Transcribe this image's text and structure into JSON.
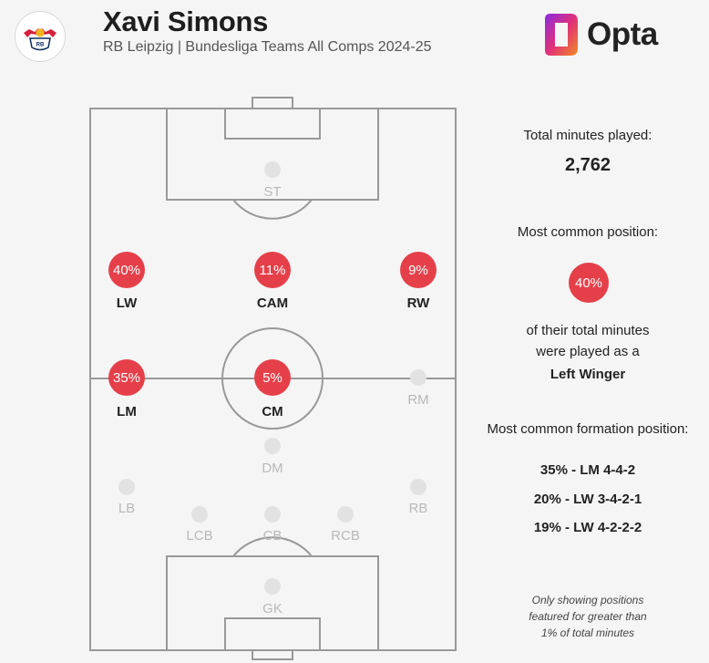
{
  "header": {
    "player_name": "Xavi Simons",
    "subtitle": "RB Leipzig | Bundesliga Teams All Comps 2024-25",
    "club_badge_icon": "rb-leipzig-badge-icon",
    "brand": "Opta"
  },
  "colors": {
    "accent": "#e5404a",
    "inactive_dot": "#e2e2e2",
    "pitch_line": "#999999"
  },
  "positions": [
    {
      "code": "ST",
      "pct": null
    },
    {
      "code": "LW",
      "pct": "40%"
    },
    {
      "code": "CAM",
      "pct": "11%"
    },
    {
      "code": "RW",
      "pct": "9%"
    },
    {
      "code": "LM",
      "pct": "35%"
    },
    {
      "code": "CM",
      "pct": "5%"
    },
    {
      "code": "RM",
      "pct": null
    },
    {
      "code": "DM",
      "pct": null
    },
    {
      "code": "LB",
      "pct": null
    },
    {
      "code": "RB",
      "pct": null
    },
    {
      "code": "LCB",
      "pct": null
    },
    {
      "code": "CB",
      "pct": null
    },
    {
      "code": "RCB",
      "pct": null
    },
    {
      "code": "GK",
      "pct": null
    }
  ],
  "sidebar": {
    "total_minutes_label": "Total minutes played:",
    "total_minutes_value": "2,762",
    "common_position_label": "Most common position:",
    "common_position_pct": "40%",
    "common_position_text_1": "of their total minutes",
    "common_position_text_2": "were played as a",
    "common_position_name": "Left Winger",
    "formation_label": "Most common formation position:",
    "formations": [
      "35% - LM 4-4-2",
      "20% - LW 3-4-2-1",
      "19% - LW 4-2-2-2"
    ],
    "note_1": "Only showing positions",
    "note_2": "featured for greater than",
    "note_3": "1% of total minutes"
  }
}
